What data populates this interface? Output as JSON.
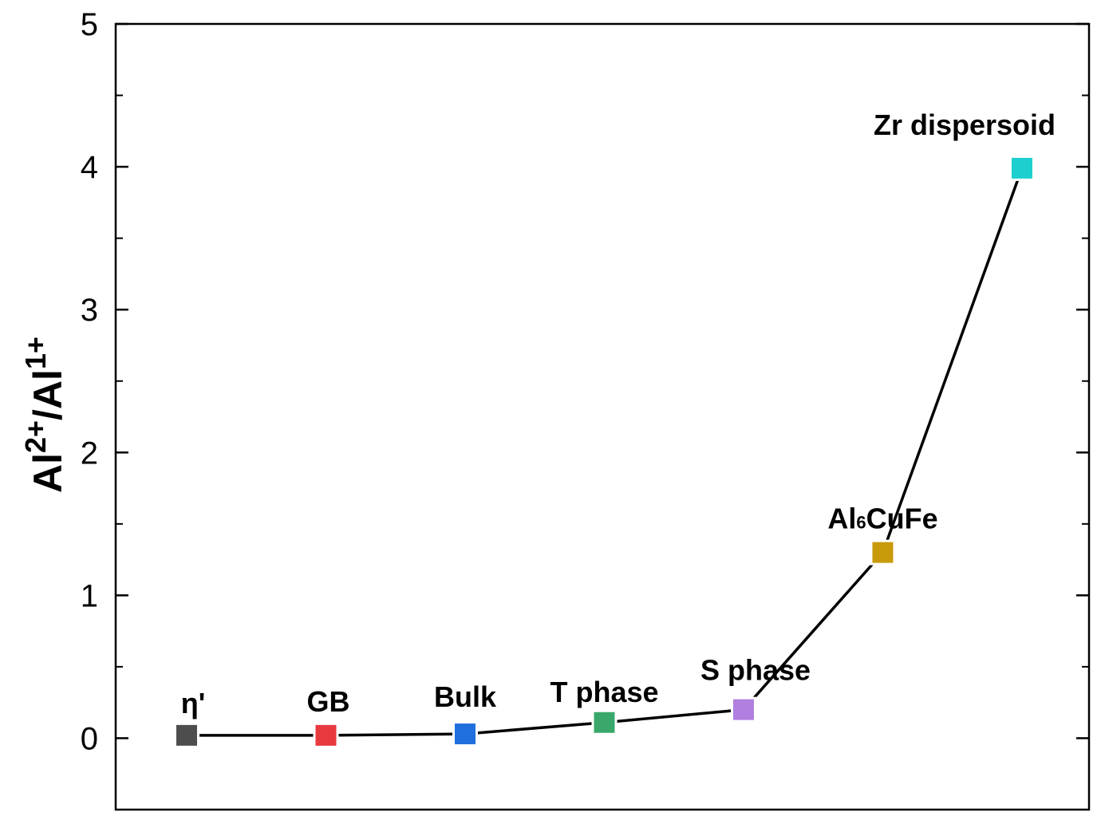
{
  "chart_data": {
    "type": "line",
    "title": "",
    "xlabel": "",
    "ylabel": {
      "base1": "Al",
      "sup1": "2+",
      "sep": "/Al",
      "sup2": "1+"
    },
    "ylim": [
      -0.5,
      5
    ],
    "yticks": [
      0,
      1,
      2,
      3,
      4,
      5
    ],
    "ytick_labels": [
      "0",
      "1",
      "2",
      "3",
      "4",
      "5"
    ],
    "minor_ytick_step": 0.5,
    "grid": false,
    "legend": "none",
    "line_color": "#000000",
    "categories": [
      "η'",
      "GB",
      "Bulk",
      "T phase",
      "S phase",
      "Al6CuFe",
      "Zr dispersoid"
    ],
    "values": [
      0.02,
      0.02,
      0.03,
      0.11,
      0.2,
      1.3,
      3.99
    ],
    "point_labels": [
      {
        "text": "η'"
      },
      {
        "text": "GB"
      },
      {
        "text": "Bulk"
      },
      {
        "text": "T phase"
      },
      {
        "text": "S phase"
      },
      {
        "text": "Al",
        "sub": "6",
        "rest": "CuFe"
      },
      {
        "text": "Zr dispersoid"
      }
    ],
    "marker_colors": [
      "#4d4d4d",
      "#e8393f",
      "#1f6fde",
      "#3aa86a",
      "#b07fe0",
      "#c99a0a",
      "#1ecfcf"
    ]
  }
}
